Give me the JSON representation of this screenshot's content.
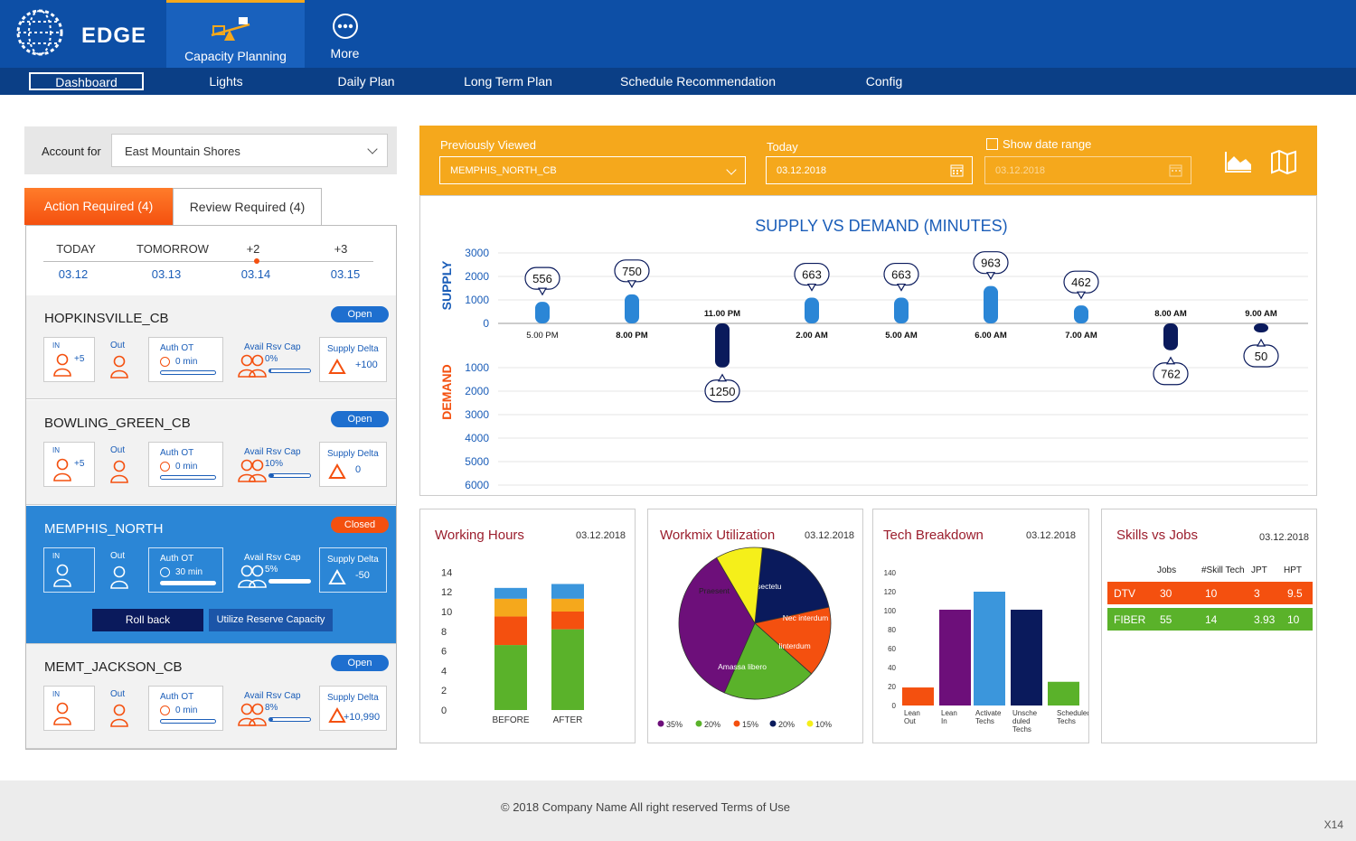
{
  "app": {
    "logo_text": "EDGE"
  },
  "top_nav": [
    {
      "label": "Capacity Planning",
      "icon": "seesaw-icon"
    },
    {
      "label": "More",
      "icon": "more-icon"
    }
  ],
  "sub_nav": [
    "Dashboard",
    "Lights",
    "Daily Plan",
    "Long Term Plan",
    "Schedule Recommendation",
    "Config"
  ],
  "account": {
    "label": "Account for",
    "value": "East Mountain Shores"
  },
  "tabs": {
    "action": "Action Required (4)",
    "review": "Review Required (4)"
  },
  "days": [
    {
      "head": "TODAY",
      "date": "03.12"
    },
    {
      "head": "TOMORROW",
      "date": "03.13"
    },
    {
      "head": "+2",
      "date": "03.14"
    },
    {
      "head": "+3",
      "date": "03.15"
    }
  ],
  "labels": {
    "in": "IN",
    "out": "Out",
    "auth_ot": "Auth OT",
    "avail": "Avail Rsv Cap",
    "supply_delta": "Supply Delta"
  },
  "cards": [
    {
      "name": "HOPKINSVILLE_CB",
      "status": "Open",
      "in": "+5",
      "auth": "0 min",
      "auth_pct": 0,
      "avail": "0%",
      "avail_pct": 0,
      "delta": "+100"
    },
    {
      "name": "BOWLING_GREEN_CB",
      "status": "Open",
      "in": "+5",
      "auth": "0 min",
      "auth_pct": 0,
      "avail": "10%",
      "avail_pct": 10,
      "delta": "0"
    },
    {
      "name": "MEMPHIS_NORTH",
      "status": "Closed",
      "in": "",
      "auth": "30 min",
      "auth_pct": 40,
      "avail": "5%",
      "avail_pct": 5,
      "delta": "-50",
      "actions": [
        "Roll back",
        "Utilize Reserve Capacity"
      ]
    },
    {
      "name": "MEMT_JACKSON_CB",
      "status": "Open",
      "in": "",
      "auth": "0 min",
      "auth_pct": 0,
      "avail": "8%",
      "avail_pct": 8,
      "delta": "+10,990"
    }
  ],
  "filters": {
    "previously_viewed_label": "Previously Viewed",
    "previously_viewed": "MEMPHIS_NORTH_CB",
    "today_label": "Today",
    "today": "03.12.2018",
    "range_label": "Show date range",
    "range_value": "03.12.2018"
  },
  "colors": {
    "primary": "#0d4fa6",
    "accent": "#f5a81c",
    "orange": "#f4500f",
    "navy": "#0a1a5c",
    "blue": "#1a5db8"
  },
  "chart_data": [
    {
      "type": "bar",
      "title": "SUPPLY VS DEMAND (MINUTES)",
      "supply_label": "SUPPLY",
      "demand_label": "DEMAND",
      "supply_ticks": [
        3000,
        2000,
        1000,
        0
      ],
      "demand_ticks": [
        1000,
        2000,
        3000,
        4000,
        5000,
        6000
      ],
      "points": [
        {
          "time": "5.00 PM",
          "supply": 556
        },
        {
          "time": "8.00 PM",
          "supply": 750
        },
        {
          "time": "11.00 PM",
          "demand": 1250
        },
        {
          "time": "2.00 AM",
          "supply": 663
        },
        {
          "time": "5.00 AM",
          "supply": 663
        },
        {
          "time": "6.00 AM",
          "supply": 963
        },
        {
          "time": "7.00 AM",
          "supply": 462
        },
        {
          "time": "8.00 AM",
          "demand": 762
        },
        {
          "time": "9.00 AM",
          "demand": 50
        }
      ]
    },
    {
      "type": "bar",
      "title": "Working Hours",
      "date": "03.12.2018",
      "categories": [
        "BEFORE",
        "AFTER"
      ],
      "y_ticks": [
        14,
        12,
        10,
        8,
        6,
        4,
        2,
        0
      ],
      "ylim": [
        0,
        14
      ],
      "segments": [
        {
          "color": "#5ab22a",
          "values": [
            6.6,
            8.2
          ]
        },
        {
          "color": "#f4500f",
          "values": [
            2.9,
            1.8
          ]
        },
        {
          "color": "#f5a81c",
          "values": [
            1.8,
            1.3
          ]
        },
        {
          "color": "#3b96dc",
          "values": [
            1.1,
            1.5
          ]
        }
      ]
    },
    {
      "type": "pie",
      "title": "Workmix Utilization",
      "date": "03.12.2018",
      "slices": [
        {
          "label": "Consectetu",
          "value": 20,
          "color": "#0a1a5c"
        },
        {
          "label": "Nec interdum",
          "value": 15,
          "color": "#f4500f"
        },
        {
          "label": "Iinterdum",
          "value": 20,
          "color": "#5ab22a"
        },
        {
          "label": "Amassa libero",
          "value": 35,
          "color": "#6d0f7a"
        },
        {
          "label": "Praesent",
          "value": 10,
          "color": "#f5ef1a"
        }
      ],
      "legend": [
        {
          "text": "35%",
          "color": "#6d0f7a"
        },
        {
          "text": "20%",
          "color": "#5ab22a"
        },
        {
          "text": "15%",
          "color": "#f4500f"
        },
        {
          "text": "20%",
          "color": "#0a1a5c"
        },
        {
          "text": "10%",
          "color": "#f5ef1a"
        }
      ]
    },
    {
      "type": "bar",
      "title": "Tech Breakdown",
      "date": "03.12.2018",
      "y_ticks": [
        140,
        120,
        100,
        80,
        60,
        40,
        20,
        0
      ],
      "ylim": [
        0,
        140
      ],
      "bars": [
        {
          "label": [
            "Lean",
            "Out"
          ],
          "value": 19,
          "color": "#f4500f"
        },
        {
          "label": [
            "Lean",
            "In"
          ],
          "value": 101,
          "color": "#6d0f7a"
        },
        {
          "label": [
            "Activate",
            "Techs"
          ],
          "value": 120,
          "color": "#3b96dc"
        },
        {
          "label": [
            "Unsche",
            "duled",
            "Techs"
          ],
          "value": 101,
          "color": "#0a1a5c"
        },
        {
          "label": [
            "Scheduled",
            "Techs"
          ],
          "value": 25,
          "color": "#5ab22a"
        }
      ]
    },
    {
      "type": "table",
      "title": "Skills vs Jobs",
      "date": "03.12.2018",
      "columns": [
        "Jobs",
        "#Skill Tech",
        "JPT",
        "HPT"
      ],
      "rows": [
        {
          "name": "DTV",
          "cells": [
            "30",
            "10",
            "3",
            "9.5"
          ],
          "color": "#f4500f"
        },
        {
          "name": "FIBER",
          "cells": [
            "55",
            "14",
            "3.93",
            "10"
          ],
          "color": "#5ab22a"
        }
      ]
    }
  ],
  "footer": {
    "text": "© 2018 Company Name  All right reserved  Terms of Use",
    "corner": "X14"
  }
}
